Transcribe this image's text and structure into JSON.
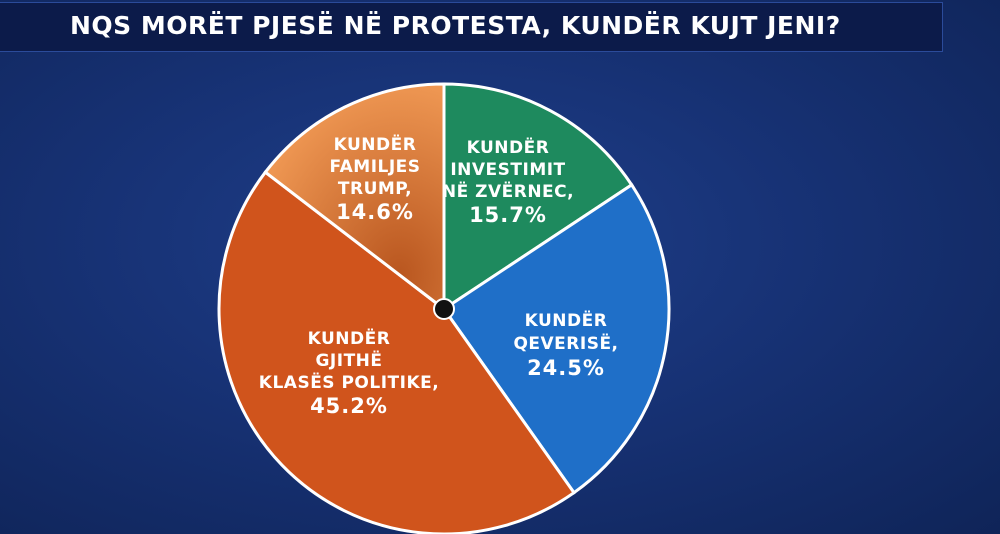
{
  "title": "NQS MORËT PJESË NË PROTESTA, KUNDËR KUJT JENI?",
  "chart_data": {
    "type": "pie",
    "title": "NQS MORËT PJESË NË PROTESTA, KUNDËR KUJT JENI?",
    "slices": [
      {
        "label": [
          "KUNDËR",
          "INVESTIMIT",
          "NË ZVËRNEC,"
        ],
        "percent": "15.7%",
        "value": 15.7,
        "color": "#1e8a5e"
      },
      {
        "label": [
          "KUNDËR",
          "QEVERISË,"
        ],
        "percent": "24.5%",
        "value": 24.5,
        "color": "#1f6fc8"
      },
      {
        "label": [
          "KUNDËR",
          "GJITHË",
          "KLASËS POLITIKE,"
        ],
        "percent": "45.2%",
        "value": 45.2,
        "color": "#d0541c"
      },
      {
        "label": [
          "KUNDËR",
          "FAMILJES",
          "TRUMP,"
        ],
        "percent": "14.6%",
        "value": 14.6,
        "color": "#e5843a"
      }
    ]
  }
}
